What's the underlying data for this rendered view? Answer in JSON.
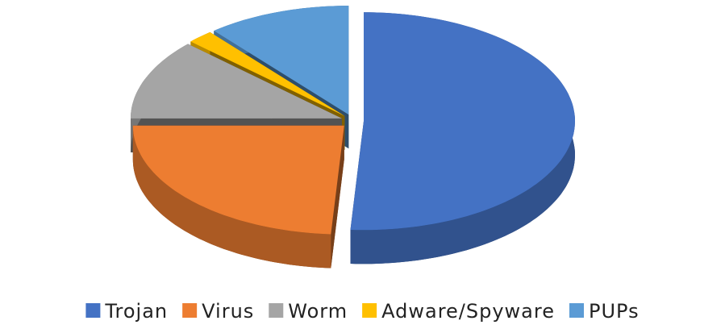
{
  "chart_data": {
    "type": "pie",
    "categories": [
      "Trojan",
      "Virus",
      "Worm",
      "Adware/Spyware",
      "PUPs"
    ],
    "values": [
      51,
      24,
      12,
      2,
      11
    ],
    "colors": [
      "#4472c4",
      "#ed7d31",
      "#a5a5a5",
      "#ffc000",
      "#5b9bd5"
    ],
    "legend": "bottom"
  }
}
